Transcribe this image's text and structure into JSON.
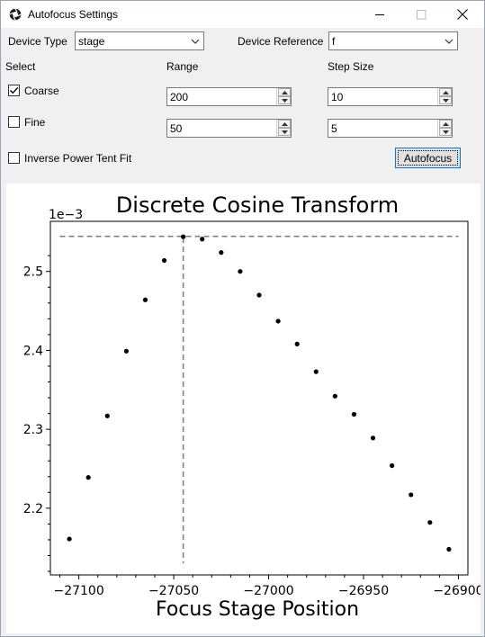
{
  "window": {
    "title": "Autofocus Settings",
    "icons": {
      "app": "camera-lens-icon",
      "minimize": "minimize-icon",
      "maximize": "maximize-icon",
      "close": "close-icon"
    }
  },
  "form": {
    "device_type_label": "Device Type",
    "device_type_value": "stage",
    "device_reference_label": "Device Reference",
    "device_reference_value": "f",
    "select_label": "Select",
    "range_label": "Range",
    "step_size_label": "Step Size",
    "coarse": {
      "label": "Coarse",
      "checked": true,
      "range": "200",
      "step": "10"
    },
    "fine": {
      "label": "Fine",
      "checked": false,
      "range": "50",
      "step": "5"
    },
    "inverse_label": "Inverse Power Tent Fit",
    "inverse_checked": false,
    "autofocus_button": "Autofocus"
  },
  "chart_data": {
    "type": "scatter",
    "title": "Discrete Cosine Transform",
    "xlabel": "Focus Stage Position",
    "ylabel": "",
    "y_offset_label": "1e−3",
    "xlim": [
      -27115,
      -26895
    ],
    "ylim": [
      2.1155,
      2.5635
    ],
    "x_ticks": [
      -27100,
      -27050,
      -27000,
      -26950,
      -26900
    ],
    "x_tick_labels": [
      "−27100",
      "−27050",
      "−27000",
      "−26950",
      "−26900"
    ],
    "y_ticks": [
      2.2,
      2.3,
      2.4,
      2.5
    ],
    "y_tick_labels": [
      "2.2",
      "2.3",
      "2.4",
      "2.5"
    ],
    "grid": false,
    "marker_color": "#000000",
    "series": [
      {
        "x": [
          -27105,
          -27095,
          -27085,
          -27075,
          -27065,
          -27055,
          -27045,
          -27035,
          -27025,
          -27015,
          -27005,
          -26995,
          -26985,
          -26975,
          -26965,
          -26955,
          -26945,
          -26935,
          -26925,
          -26915,
          -26905
        ],
        "y": [
          2.161,
          2.239,
          2.317,
          2.399,
          2.464,
          2.514,
          2.544,
          2.541,
          2.524,
          2.5,
          2.47,
          2.437,
          2.408,
          2.373,
          2.342,
          2.319,
          2.289,
          2.254,
          2.217,
          2.182,
          2.148
        ]
      }
    ],
    "reference_lines": {
      "vertical_x": -27045,
      "horizontal_y": 2.5445,
      "color": "#808080",
      "style": "dashed"
    }
  }
}
